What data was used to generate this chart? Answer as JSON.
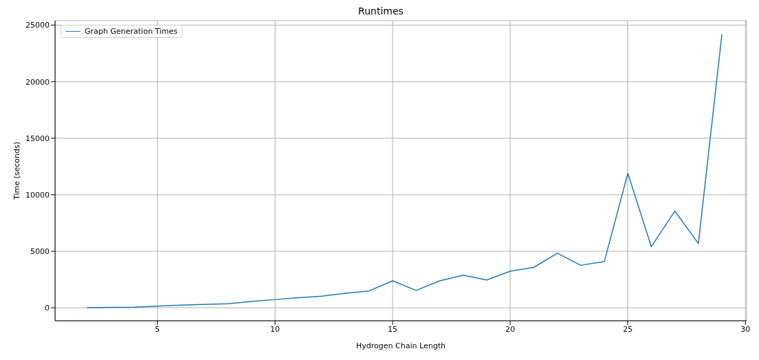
{
  "chart_data": {
    "type": "line",
    "title": "Runtimes",
    "xlabel": "Hydrogen Chain Length",
    "ylabel": "Time (seconds)",
    "x": [
      2,
      3,
      4,
      5,
      6,
      7,
      8,
      9,
      10,
      11,
      12,
      13,
      14,
      15,
      16,
      17,
      18,
      19,
      20,
      21,
      22,
      23,
      24,
      25,
      26,
      27,
      28,
      29
    ],
    "series": [
      {
        "name": "Graph Generation Times",
        "color": "#1f77b4",
        "values": [
          0,
          30,
          50,
          150,
          230,
          290,
          360,
          560,
          730,
          890,
          1020,
          1280,
          1490,
          2380,
          1540,
          2380,
          2880,
          2460,
          3230,
          3570,
          4830,
          3760,
          4080,
          11900,
          5400,
          8560,
          5680,
          24200
        ]
      }
    ],
    "xlim": [
      0.65,
      30.05
    ],
    "xticks": [
      5,
      10,
      15,
      20,
      25,
      30
    ],
    "ylim": [
      -1150,
      25400
    ],
    "yticks": [
      0,
      5000,
      10000,
      15000,
      20000,
      25000
    ],
    "grid": true,
    "legend": "top left",
    "marker": "none",
    "line_style": "solid"
  }
}
